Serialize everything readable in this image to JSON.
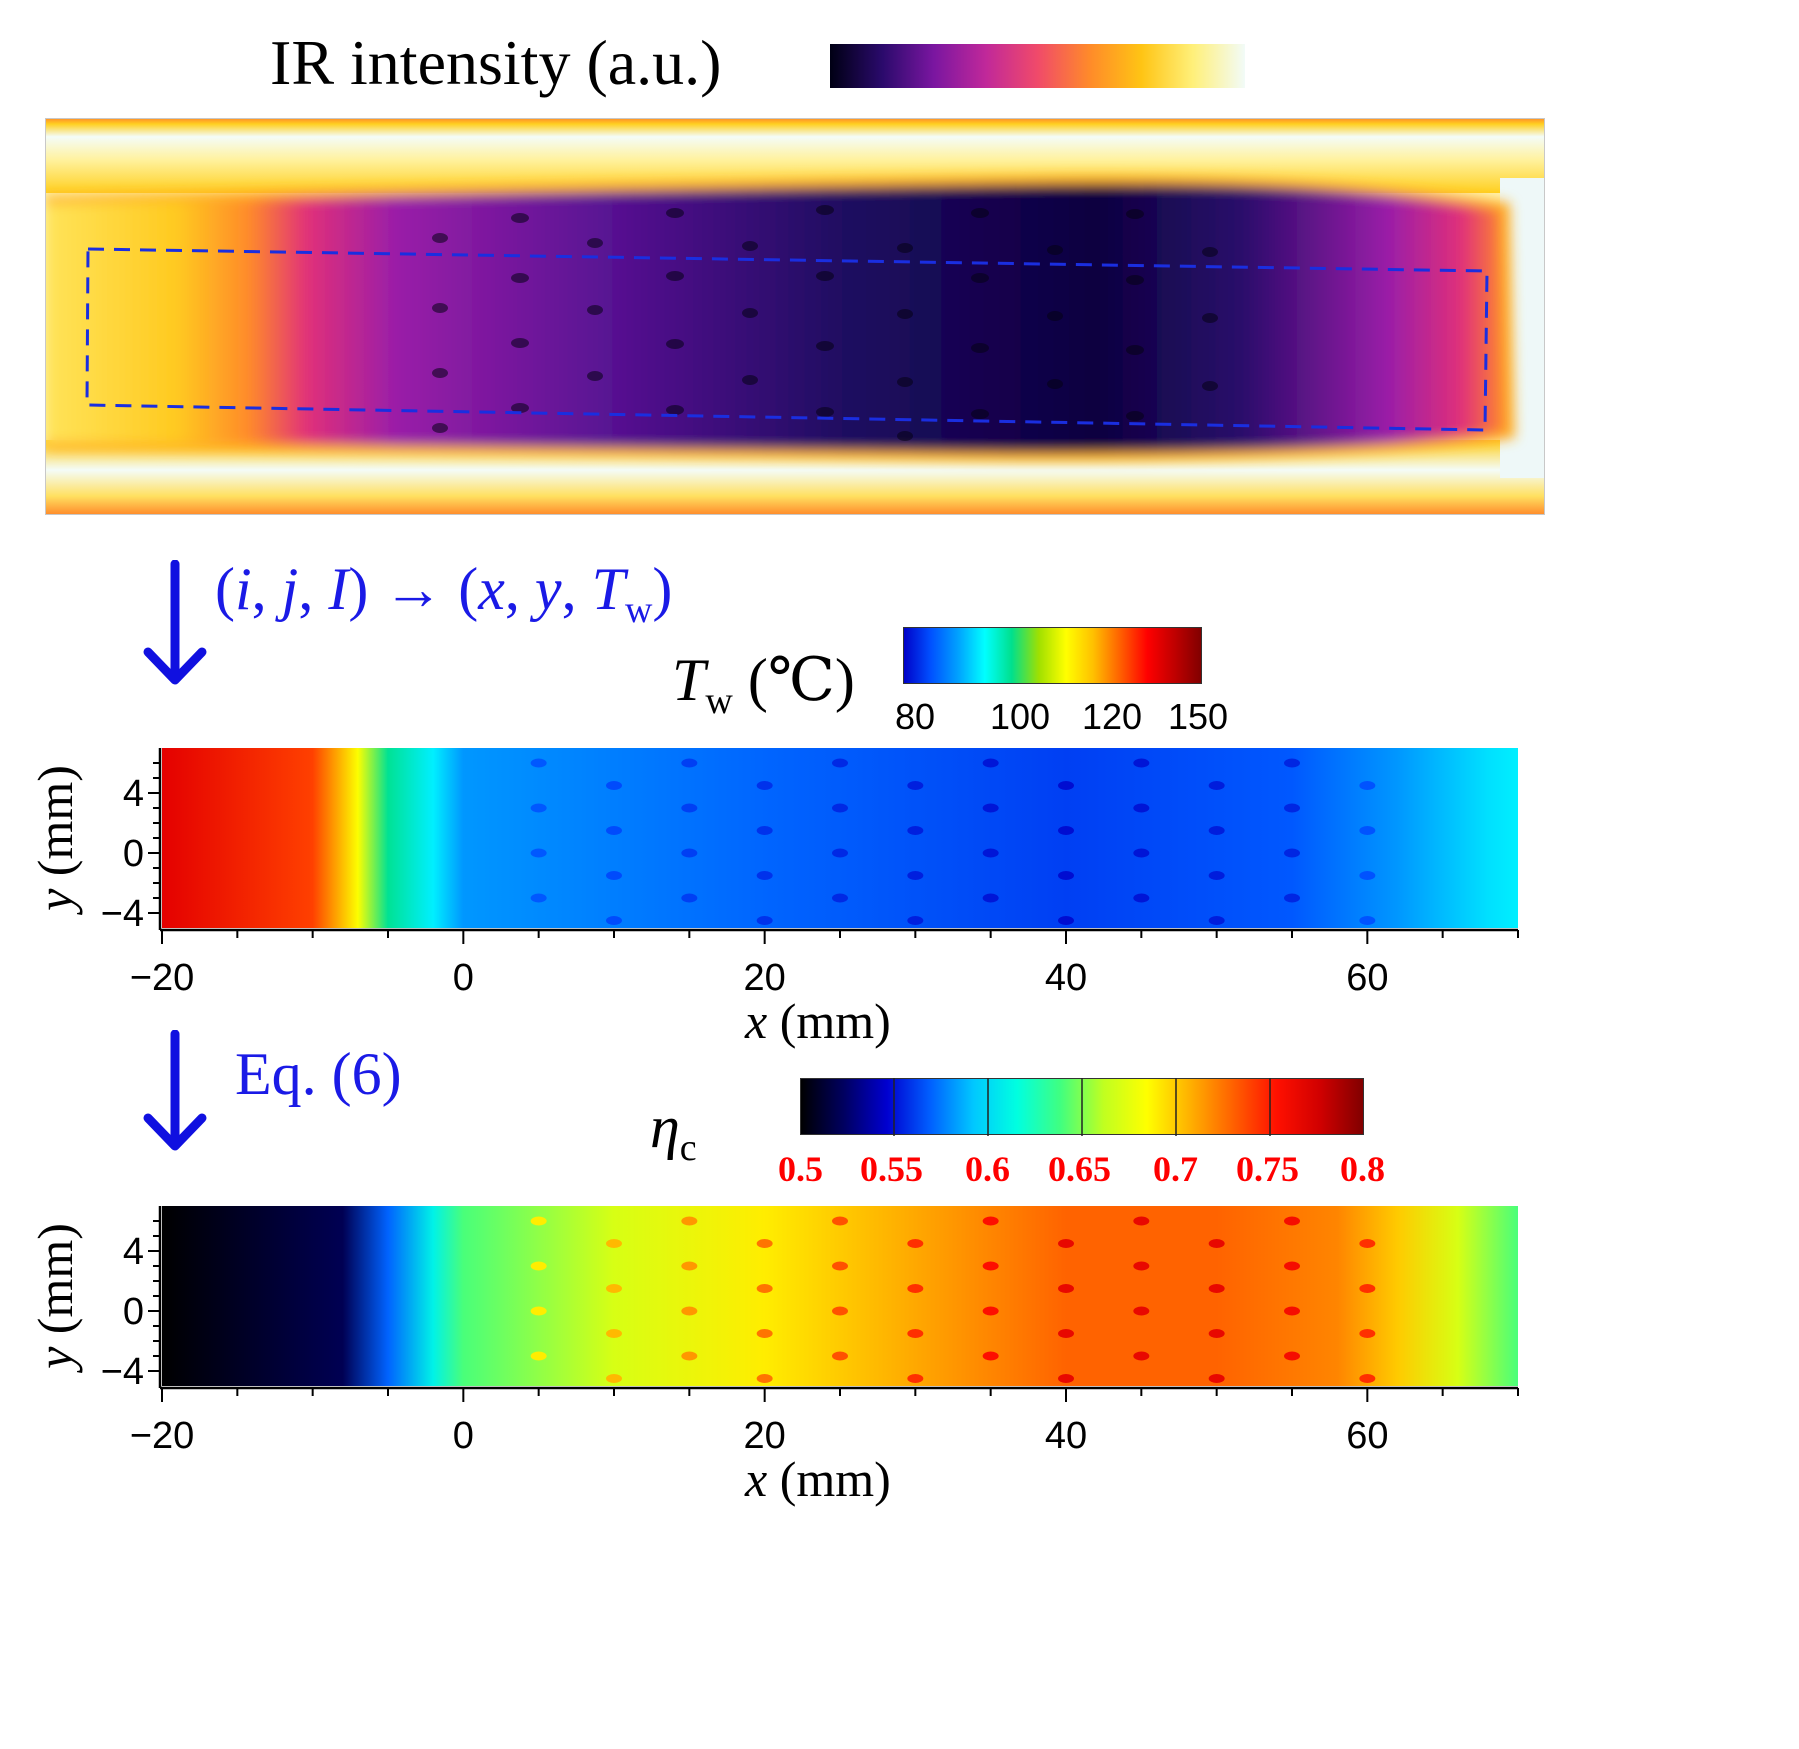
{
  "ir_panel": {
    "title": "IR intensity (a.u.)",
    "colormap": [
      "#000014",
      "#2a0a6b",
      "#7a16a0",
      "#c0289a",
      "#f04a6a",
      "#ff8a2a",
      "#ffc414",
      "#fff07a",
      "#f2fbf8"
    ]
  },
  "step1": {
    "text_pre": "(",
    "i": "i",
    "j": "j",
    "I": "I",
    "arrow": "→",
    "x": "x",
    "y": "y",
    "T": "T",
    "sub": "w",
    "text_post": ")"
  },
  "step2": {
    "text": "Eq. (6)"
  },
  "tw_colorbar": {
    "label_T": "T",
    "label_sub": "w",
    "label_unit": "(℃)",
    "ticks": [
      "80",
      "100",
      "120",
      "150"
    ],
    "colors": [
      "#0000c8",
      "#0050ff",
      "#00a0ff",
      "#00ffff",
      "#00e08c",
      "#a0e000",
      "#ffff00",
      "#ffc000",
      "#ff6000",
      "#ff0000",
      "#c00000",
      "#800000"
    ]
  },
  "eta_colorbar": {
    "label": "η",
    "label_sub": "c",
    "ticks": [
      "0.5",
      "0.55",
      "0.6",
      "0.65",
      "0.7",
      "0.75",
      "0.8"
    ],
    "tick_color": "#ff0000",
    "colors": [
      "#000000",
      "#000060",
      "#0000d0",
      "#0060ff",
      "#00c8ff",
      "#00ffe0",
      "#40ff80",
      "#c0ff20",
      "#ffff00",
      "#ffb000",
      "#ff6000",
      "#ff1000",
      "#d00000",
      "#800000"
    ]
  },
  "chart_data": [
    {
      "type": "heatmap",
      "title": "IR intensity (a.u.)",
      "xlabel": "",
      "ylabel": ""
    },
    {
      "type": "heatmap",
      "title": "Tw (℃)",
      "xlabel": "x (mm)",
      "ylabel": "y (mm)",
      "xlim": [
        -20,
        70
      ],
      "ylim": [
        -5,
        7
      ],
      "xticks": [
        -20,
        0,
        20,
        40,
        60
      ],
      "xtick_labels": [
        "−20",
        "0",
        "20",
        "40",
        "60"
      ],
      "yticks": [
        -4,
        0,
        4
      ],
      "ytick_labels": [
        "−4",
        "0",
        "4"
      ],
      "colorbar_range": [
        80,
        150
      ],
      "profile_x": [
        -20,
        -10,
        -7,
        -5,
        -2,
        0,
        20,
        40,
        55,
        62,
        68,
        70
      ],
      "profile_value": [
        140,
        133,
        118,
        105,
        98,
        92,
        88,
        85,
        87,
        92,
        97,
        98
      ]
    },
    {
      "type": "heatmap",
      "title": "ηc",
      "xlabel": "x (mm)",
      "ylabel": "y (mm)",
      "xlim": [
        -20,
        70
      ],
      "ylim": [
        -5,
        7
      ],
      "xticks": [
        -20,
        0,
        20,
        40,
        60
      ],
      "xtick_labels": [
        "−20",
        "0",
        "20",
        "40",
        "60"
      ],
      "yticks": [
        -4,
        0,
        4
      ],
      "ytick_labels": [
        "−4",
        "0",
        "4"
      ],
      "colorbar_range": [
        0.5,
        0.8
      ],
      "profile_x": [
        -20,
        -8,
        -5,
        -2,
        0,
        10,
        20,
        30,
        40,
        50,
        58,
        62,
        66,
        70
      ],
      "profile_value": [
        0.5,
        0.52,
        0.57,
        0.61,
        0.64,
        0.67,
        0.69,
        0.71,
        0.73,
        0.73,
        0.72,
        0.7,
        0.67,
        0.64
      ]
    }
  ]
}
